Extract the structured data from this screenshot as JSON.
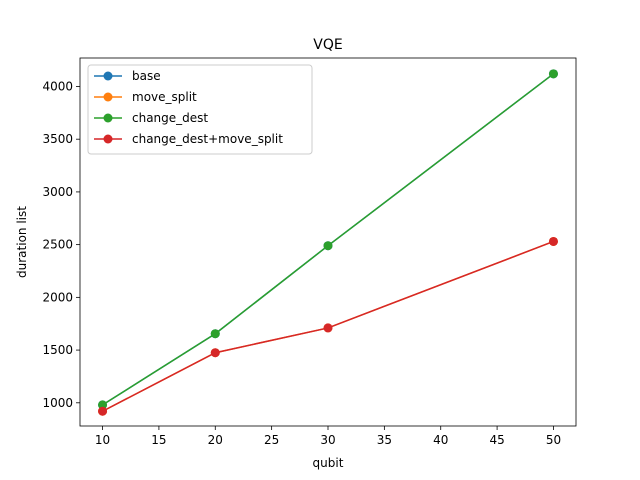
{
  "chart_data": {
    "type": "line",
    "title": "VQE",
    "xlabel": "qubit",
    "ylabel": "duration list",
    "xlim": [
      8.0,
      52.0
    ],
    "ylim": [
      780,
      4270
    ],
    "xticks": [
      10,
      15,
      20,
      25,
      30,
      35,
      40,
      45,
      50
    ],
    "yticks": [
      1000,
      1500,
      2000,
      2500,
      3000,
      3500,
      4000
    ],
    "x": [
      10,
      20,
      30,
      50
    ],
    "grid": false,
    "legend_position": "top-left",
    "series": [
      {
        "name": "base",
        "color": "#1f77b4",
        "values": [
          980,
          1655,
          2490,
          4120
        ]
      },
      {
        "name": "move_split",
        "color": "#ff7f0e",
        "values": [
          920,
          1475,
          1710,
          2530
        ]
      },
      {
        "name": "change_dest",
        "color": "#2ca02c",
        "values": [
          980,
          1655,
          2490,
          4120
        ]
      },
      {
        "name": "change_dest+move_split",
        "color": "#d62728",
        "values": [
          920,
          1475,
          1710,
          2530
        ]
      }
    ]
  }
}
